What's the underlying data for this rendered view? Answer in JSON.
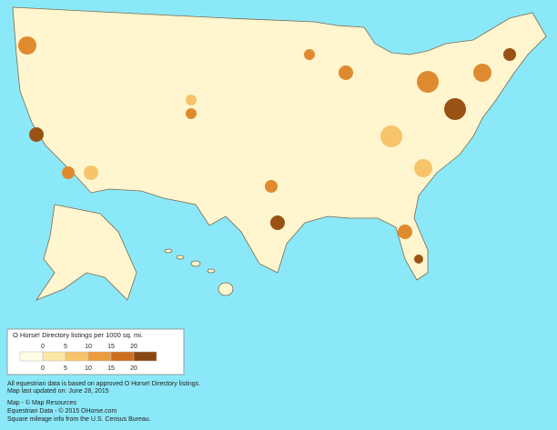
{
  "legend": {
    "title": "O Horse! Directory listings per 1000 sq. mi.",
    "labels_top": [
      0,
      5,
      10,
      15,
      20
    ],
    "labels_bottom": [
      0,
      5,
      10,
      15,
      20
    ],
    "colors": [
      "#fffde6",
      "#fbe6a6",
      "#f7c46c",
      "#eb9c3c",
      "#cf6e1e",
      "#8a4810"
    ]
  },
  "notes": [
    "All equestrian data is based on approved O Horse! Directory listings.",
    "Map last updated on: June 28, 2015"
  ],
  "credits": [
    "Map - © Map Resources",
    "Equestrian Data - © 2015 OHorse.com",
    "Square mileage info from the U.S. Census Bureau."
  ]
}
